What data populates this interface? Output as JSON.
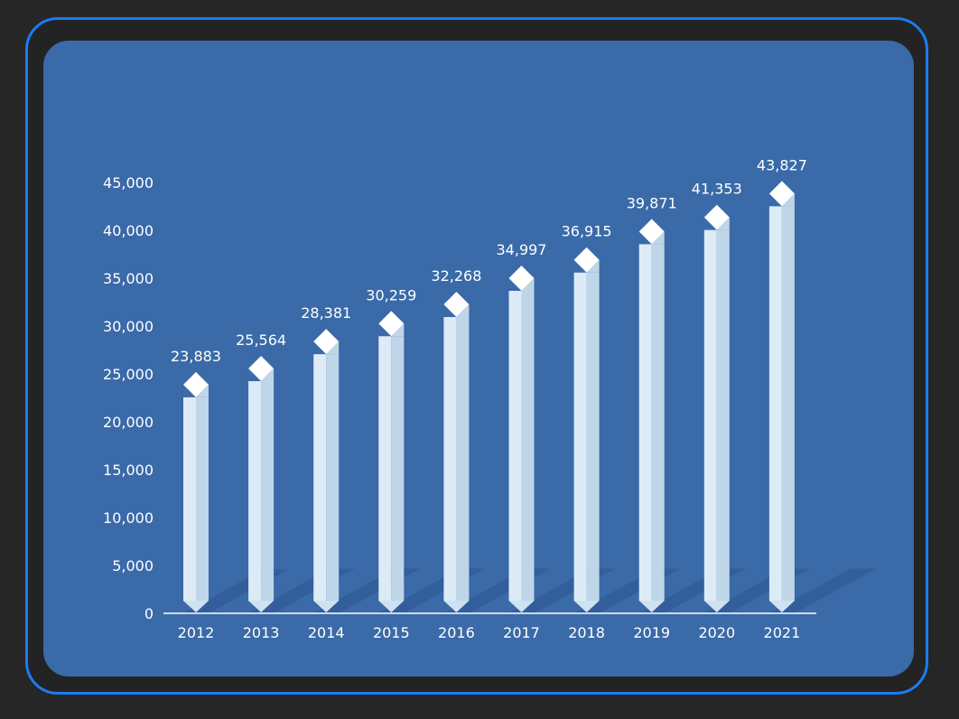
{
  "chart_data": {
    "type": "bar",
    "categories": [
      "2012",
      "2013",
      "2014",
      "2015",
      "2016",
      "2017",
      "2018",
      "2019",
      "2020",
      "2021"
    ],
    "values": [
      23883,
      25564,
      28381,
      30259,
      32268,
      34997,
      36915,
      39871,
      41353,
      43827
    ],
    "value_labels": [
      "23,883",
      "25,564",
      "28,381",
      "30,259",
      "32,268",
      "34,997",
      "36,915",
      "39,871",
      "41,353",
      "43,827"
    ],
    "y_ticks": [
      0,
      5000,
      10000,
      15000,
      20000,
      25000,
      30000,
      35000,
      40000,
      45000
    ],
    "y_tick_labels": [
      "0",
      "5,000",
      "10,000",
      "15,000",
      "20,000",
      "25,000",
      "30,000",
      "35,000",
      "40,000",
      "45,000"
    ],
    "ylim": [
      0,
      45000
    ],
    "title": "",
    "xlabel": "",
    "ylabel": "",
    "grid": false,
    "colors": {
      "background": "#3a6aa8",
      "frame_border": "#1a7cf2",
      "bar_light": "#dcebf6",
      "bar_shade": "#bfd6e8",
      "bar_cap": "#ffffff",
      "shadow": "#2c5690",
      "axis": "#ffffff",
      "text": "#ffffff"
    }
  }
}
